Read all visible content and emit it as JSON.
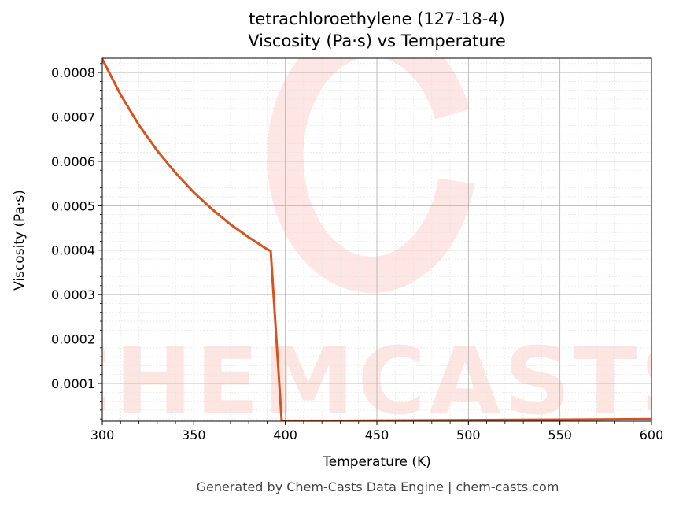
{
  "chart_data": {
    "type": "line",
    "title": "tetrachloroethylene (127-18-4)",
    "subtitle": "Viscosity (Pa·s) vs Temperature",
    "xlabel": "Temperature (K)",
    "ylabel": "Viscosity (Pa·s)",
    "xlim": [
      300,
      600
    ],
    "ylim": [
      1.49e-05,
      0.000832
    ],
    "xticks": [
      "300",
      "350",
      "400",
      "450",
      "500",
      "550",
      "600"
    ],
    "yticks": [
      "0.0001",
      "0.0002",
      "0.0003",
      "0.0004",
      "0.0005",
      "0.0006",
      "0.0007",
      "0.0008"
    ],
    "grid": true,
    "series": [
      {
        "name": "viscosity",
        "color": "#d9521e",
        "x": [
          300,
          310,
          320,
          330,
          340,
          350,
          360,
          370,
          380,
          390,
          392,
          398,
          450,
          500,
          550,
          600
        ],
        "y": [
          0.00083,
          0.00075,
          0.000682,
          0.000624,
          0.000574,
          0.00053,
          0.000492,
          0.000458,
          0.000429,
          0.000402,
          0.000398,
          1.52e-05,
          1.62e-05,
          1.74e-05,
          1.85e-05,
          1.96e-05
        ]
      }
    ],
    "watermark": "CHEMCASTS"
  },
  "footer": "Generated by Chem-Casts Data Engine | chem-casts.com"
}
